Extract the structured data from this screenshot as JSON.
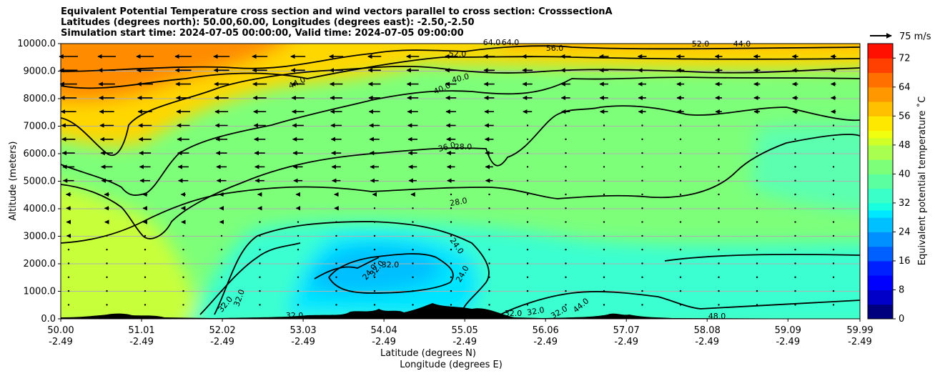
{
  "title_lines": [
    "Equivalent Potential Temperature cross section and wind vectors parallel to cross section: CrosssectionA",
    "Latitudes (degrees north): 50.00,60.00, Longitudes (degrees east): -2.50,-2.50",
    "Simulation start time: 2024-07-05 00:00:00, Valid time: 2024-07-05 09:00:00"
  ],
  "chart_data": {
    "type": "contourf",
    "title": "Equivalent Potential Temperature cross section and wind vectors parallel to cross section: CrosssectionA",
    "ylabel": "Altitude (meters)",
    "xlabel_lines": [
      "Latitude (degrees N)",
      "Longitude (degrees E)"
    ],
    "ylim": [
      0,
      10000
    ],
    "xlim": [
      50.0,
      59.99
    ],
    "yticks": [
      "0.0",
      "1000.0",
      "2000.0",
      "3000.0",
      "4000.0",
      "5000.0",
      "6000.0",
      "7000.0",
      "8000.0",
      "9000.0",
      "10000.0"
    ],
    "xticks": [
      {
        "lat": "50.00",
        "lon": "-2.49"
      },
      {
        "lat": "51.01",
        "lon": "-2.49"
      },
      {
        "lat": "52.02",
        "lon": "-2.49"
      },
      {
        "lat": "53.03",
        "lon": "-2.49"
      },
      {
        "lat": "54.04",
        "lon": "-2.49"
      },
      {
        "lat": "55.05",
        "lon": "-2.49"
      },
      {
        "lat": "56.06",
        "lon": "-2.49"
      },
      {
        "lat": "57.07",
        "lon": "-2.49"
      },
      {
        "lat": "58.08",
        "lon": "-2.49"
      },
      {
        "lat": "59.09",
        "lon": "-2.49"
      },
      {
        "lat": "59.99",
        "lon": "-2.49"
      }
    ],
    "grid": "horizontal",
    "colorbar": {
      "label": "Equivalent potential temperature ˚C",
      "range": [
        0,
        76
      ],
      "ticks": [
        "0",
        "8",
        "16",
        "24",
        "32",
        "40",
        "48",
        "56",
        "64",
        "72"
      ]
    },
    "quiver_key": "75 m/s",
    "contour_labels": [
      "52.0",
      "56.0",
      "64.0",
      "64.0",
      "52.0",
      "44.0",
      "44.0",
      "40.0",
      "40.0",
      "36.0",
      "28.0",
      "28.0",
      "24.0",
      "24.0",
      "24.0",
      "32.0",
      "32.0",
      "32.0",
      "32.0",
      "32.0",
      "32.0",
      "32.0",
      "32.0",
      "44.0",
      "48.0"
    ]
  }
}
